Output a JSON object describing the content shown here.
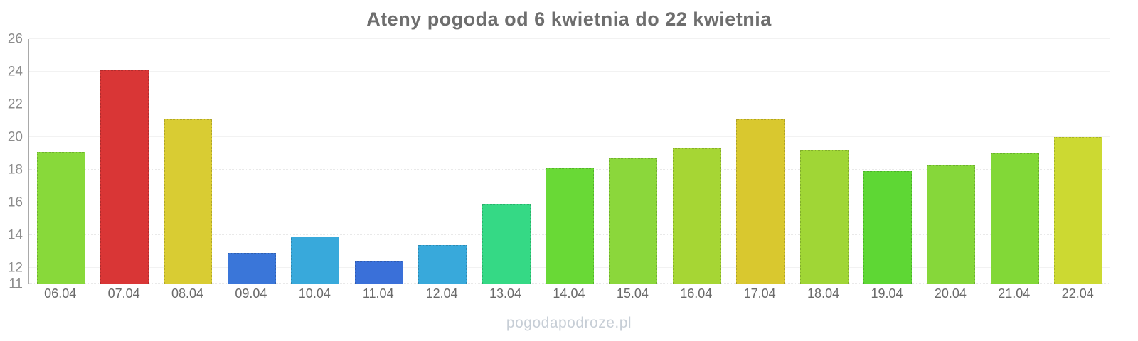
{
  "chart_data": {
    "type": "bar",
    "title": "Ateny pogoda od 6 kwietnia do 22 kwietnia",
    "categories": [
      "06.04",
      "07.04",
      "08.04",
      "09.04",
      "10.04",
      "11.04",
      "12.04",
      "13.04",
      "14.04",
      "15.04",
      "16.04",
      "17.04",
      "18.04",
      "19.04",
      "20.04",
      "21.04",
      "22.04"
    ],
    "values": [
      19.1,
      24.1,
      21.1,
      12.9,
      13.9,
      12.4,
      13.4,
      15.9,
      18.1,
      18.7,
      19.3,
      21.1,
      19.2,
      17.9,
      18.3,
      19.0,
      20.0
    ],
    "colors": [
      "#88d93a",
      "#d93636",
      "#d9cc33",
      "#3a76d9",
      "#38a9db",
      "#3a70d9",
      "#38a9db",
      "#35d985",
      "#69d936",
      "#8bd73b",
      "#a6d634",
      "#d9c82f",
      "#a0d636",
      "#5ed734",
      "#86d73a",
      "#82d837",
      "#ccd932"
    ],
    "xlabel": "",
    "ylabel": "",
    "ylim": [
      11,
      26
    ],
    "yticks": [
      11,
      12,
      14,
      16,
      18,
      20,
      22,
      24,
      26
    ],
    "dotted_gridlines": [
      11,
      14,
      18,
      22
    ],
    "grid": true,
    "legend_position": "none"
  },
  "watermark": "pogodapodroze.pl"
}
